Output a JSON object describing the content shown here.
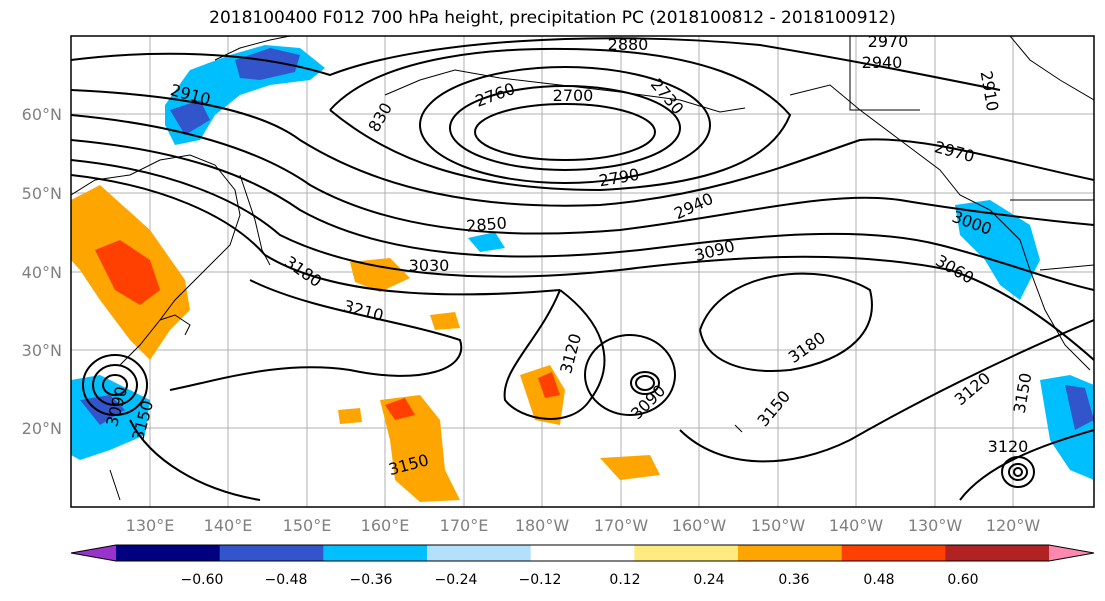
{
  "title": "2018100400 F012 700 hPa height, precipitation PC (2018100812 - 2018100912)",
  "map": {
    "lon_labels": [
      "130°E",
      "140°E",
      "150°E",
      "160°E",
      "170°E",
      "180°W",
      "170°W",
      "160°W",
      "150°W",
      "140°W",
      "130°W",
      "120°W"
    ],
    "lat_labels": [
      "20°N",
      "30°N",
      "40°N",
      "50°N",
      "60°N"
    ],
    "contour_labels": [
      "2880",
      "2970",
      "2940",
      "2910",
      "2760",
      "2700",
      "2730",
      "2910",
      "830",
      "2970",
      "2790",
      "3000",
      "2940",
      "2850",
      "3030",
      "3090",
      "3180",
      "3060",
      "3210",
      "3120",
      "3180",
      "3090",
      "3150",
      "3120",
      "3150",
      "3090",
      "3150",
      "3150",
      "3120"
    ]
  },
  "colorbar": {
    "ticks": [
      "−0.60",
      "−0.48",
      "−0.36",
      "−0.24",
      "−0.12",
      "0.12",
      "0.24",
      "0.36",
      "0.48",
      "0.60"
    ],
    "colors": [
      "#9933cc",
      "#000080",
      "#3355cc",
      "#00bfff",
      "#b3e0ff",
      "#ffffff",
      "#ffeb80",
      "#ffa500",
      "#ff4000",
      "#b22222",
      "#ff88b0"
    ]
  }
}
